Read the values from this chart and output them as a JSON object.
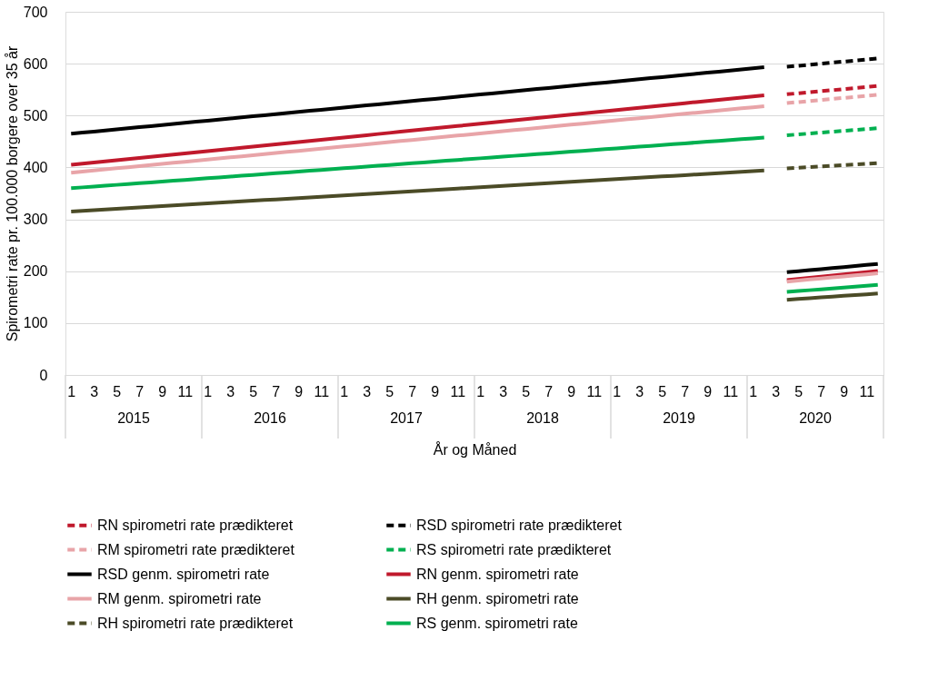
{
  "chart_data": {
    "type": "line",
    "xlabel": "År  og Måned",
    "ylabel": "Spirometri rate pr. 100.000 borgere over 35 år",
    "categories": [
      "1",
      null,
      "3",
      null,
      "5",
      null,
      "7",
      null,
      "9",
      null,
      "11",
      null,
      "1",
      null,
      "3",
      null,
      "5",
      null,
      "7",
      null,
      "9",
      null,
      "11",
      null,
      "1",
      null,
      "3",
      null,
      "5",
      null,
      "7",
      null,
      "9",
      null,
      "11",
      null,
      "1",
      null,
      "3",
      null,
      "5",
      null,
      "7",
      null,
      "9",
      null,
      "11",
      null,
      "1",
      null,
      "3",
      null,
      "5",
      null,
      "7",
      null,
      "9",
      null,
      "11",
      null,
      "1",
      null,
      "3",
      null,
      "5",
      null,
      "7",
      null,
      "9",
      null,
      "11",
      null
    ],
    "annotations": [
      "2015",
      "2016",
      "2017",
      "2018",
      "2019",
      "2020"
    ],
    "ylim": [
      0,
      700
    ],
    "yticks": [
      0,
      100,
      200,
      300,
      400,
      500,
      600,
      700
    ],
    "grid": "y",
    "legend": "bottom",
    "marker": "none",
    "series": [
      {
        "name": "RN  spirometri rate prædikteret",
        "color": "#c0192c",
        "line_style": "dashed",
        "values": [
          null,
          null,
          null,
          null,
          null,
          null,
          null,
          null,
          null,
          null,
          null,
          null,
          null,
          null,
          null,
          null,
          null,
          null,
          null,
          null,
          null,
          null,
          null,
          null,
          null,
          null,
          null,
          null,
          null,
          null,
          null,
          null,
          null,
          null,
          null,
          null,
          null,
          null,
          null,
          null,
          null,
          null,
          null,
          null,
          null,
          null,
          null,
          null,
          null,
          null,
          null,
          null,
          null,
          null,
          null,
          null,
          null,
          null,
          null,
          null,
          null,
          null,
          null,
          541,
          543,
          545,
          547,
          549,
          551,
          553,
          555,
          557
        ]
      },
      {
        "name": "RSD spirometri rate prædikteret",
        "color": "#000000",
        "line_style": "dashed",
        "values": [
          null,
          null,
          null,
          null,
          null,
          null,
          null,
          null,
          null,
          null,
          null,
          null,
          null,
          null,
          null,
          null,
          null,
          null,
          null,
          null,
          null,
          null,
          null,
          null,
          null,
          null,
          null,
          null,
          null,
          null,
          null,
          null,
          null,
          null,
          null,
          null,
          null,
          null,
          null,
          null,
          null,
          null,
          null,
          null,
          null,
          null,
          null,
          null,
          null,
          null,
          null,
          null,
          null,
          null,
          null,
          null,
          null,
          null,
          null,
          null,
          null,
          null,
          null,
          594,
          596,
          598,
          600,
          602,
          604,
          606,
          608,
          610
        ]
      },
      {
        "name": "RM spirometri rate prædikteret",
        "color": "#e8a4a8",
        "line_style": "dashed",
        "values": [
          null,
          null,
          null,
          null,
          null,
          null,
          null,
          null,
          null,
          null,
          null,
          null,
          null,
          null,
          null,
          null,
          null,
          null,
          null,
          null,
          null,
          null,
          null,
          null,
          null,
          null,
          null,
          null,
          null,
          null,
          null,
          null,
          null,
          null,
          null,
          null,
          null,
          null,
          null,
          null,
          null,
          null,
          null,
          null,
          null,
          null,
          null,
          null,
          null,
          null,
          null,
          null,
          null,
          null,
          null,
          null,
          null,
          null,
          null,
          null,
          null,
          null,
          null,
          524,
          526,
          528,
          530,
          532,
          534,
          536,
          538,
          540
        ]
      },
      {
        "name": "RS spirometri rate prædikteret",
        "color": "#00b050",
        "line_style": "dashed",
        "values": [
          null,
          null,
          null,
          null,
          null,
          null,
          null,
          null,
          null,
          null,
          null,
          null,
          null,
          null,
          null,
          null,
          null,
          null,
          null,
          null,
          null,
          null,
          null,
          null,
          null,
          null,
          null,
          null,
          null,
          null,
          null,
          null,
          null,
          null,
          null,
          null,
          null,
          null,
          null,
          null,
          null,
          null,
          null,
          null,
          null,
          null,
          null,
          null,
          null,
          null,
          null,
          null,
          null,
          null,
          null,
          null,
          null,
          null,
          null,
          null,
          null,
          null,
          null,
          462,
          463.7,
          465.4,
          467.1,
          468.8,
          470.5,
          472.2,
          473.9,
          475.6
        ]
      },
      {
        "name": "RSD genm. spirometri rate",
        "color": "#000000",
        "line_style": "solid",
        "values": [
          465.0,
          467.1,
          469.2,
          471.3,
          473.4,
          475.5,
          477.6,
          479.7,
          481.8,
          483.9,
          486.0,
          488.1,
          490.2,
          492.3,
          494.4,
          496.5,
          498.6,
          500.7,
          502.8,
          504.9,
          507.0,
          509.1,
          511.2,
          513.3,
          515.4,
          517.5,
          519.6,
          521.7,
          523.8,
          525.9,
          528.0,
          530.1,
          532.2,
          534.3,
          536.4,
          538.5,
          540.6,
          542.7,
          544.8,
          546.9,
          549.0,
          551.1,
          553.2,
          555.3,
          557.4,
          559.5,
          561.6,
          563.7,
          565.8,
          567.9,
          570.0,
          572.1,
          574.2,
          576.3,
          578.4,
          580.5,
          582.6,
          584.7,
          586.8,
          588.9,
          591.0,
          593.1,
          null,
          198,
          200,
          202,
          204,
          206,
          208,
          210,
          212,
          214
        ]
      },
      {
        "name": "RN genm. spirometri rate",
        "color": "#c0192c",
        "line_style": "solid",
        "values": [
          405,
          407.2,
          409.4,
          411.6,
          413.8,
          416,
          418.2,
          420.4,
          422.6,
          424.8,
          427,
          429.2,
          431.4,
          433.6,
          435.8,
          438,
          440.2,
          442.4,
          444.6,
          446.8,
          449,
          451.2,
          453.4,
          455.6,
          457.8,
          460,
          462.2,
          464.4,
          466.6,
          468.8,
          471,
          473.2,
          475.4,
          477.6,
          479.8,
          482,
          484.2,
          486.4,
          488.6,
          490.8,
          493,
          495.2,
          497.4,
          499.6,
          501.8,
          504,
          506.2,
          508.4,
          510.6,
          512.8,
          515,
          517.2,
          519.4,
          521.6,
          523.8,
          526,
          528.2,
          530.4,
          532.6,
          534.8,
          537,
          539.2,
          null,
          183,
          185.2,
          187.4,
          189.6,
          191.8,
          194,
          196.2,
          198.4,
          200.6
        ]
      },
      {
        "name": "RM genm. spirometri rate",
        "color": "#e8a4a8",
        "line_style": "solid",
        "values": [
          390,
          392.1,
          394.2,
          396.3,
          398.4,
          400.5,
          402.6,
          404.7,
          406.8,
          408.9,
          411,
          413.1,
          415.2,
          417.3,
          419.4,
          421.5,
          423.6,
          425.7,
          427.8,
          429.9,
          432,
          434.1,
          436.2,
          438.3,
          440.4,
          442.5,
          444.6,
          446.7,
          448.8,
          450.9,
          453,
          455.1,
          457.2,
          459.3,
          461.4,
          463.5,
          465.6,
          467.7,
          469.8,
          471.9,
          474,
          476.1,
          478.2,
          480.3,
          482.4,
          484.5,
          486.6,
          488.7,
          490.8,
          492.9,
          495,
          497.1,
          499.2,
          501.3,
          503.4,
          505.5,
          507.6,
          509.7,
          511.8,
          513.9,
          516,
          518.1,
          null,
          180,
          182,
          184,
          186,
          188,
          190,
          192,
          194,
          196
        ]
      },
      {
        "name": "RH genm. spirometri rate",
        "color": "#4b4b27",
        "line_style": "solid",
        "values": [
          315,
          316.3,
          317.6,
          318.9,
          320.2,
          321.5,
          322.8,
          324.1,
          325.4,
          326.7,
          328,
          329.3,
          330.6,
          331.9,
          333.2,
          334.5,
          335.8,
          337.1,
          338.4,
          339.7,
          341,
          342.3,
          343.6,
          344.9,
          346.2,
          347.5,
          348.8,
          350.1,
          351.4,
          352.7,
          354,
          355.3,
          356.6,
          357.9,
          359.2,
          360.5,
          361.8,
          363.1,
          364.4,
          365.7,
          367,
          368.3,
          369.6,
          370.9,
          372.2,
          373.5,
          374.8,
          376.1,
          377.4,
          378.7,
          380,
          381.3,
          382.6,
          383.9,
          385.2,
          386.5,
          387.8,
          389.1,
          390.4,
          391.7,
          393,
          394.3,
          null,
          145,
          146.5,
          148,
          149.5,
          151,
          152.5,
          154,
          155.5,
          157
        ]
      },
      {
        "name": "RH spirometri rate prædikteret",
        "color": "#4b4b27",
        "line_style": "dashed",
        "values": [
          null,
          null,
          null,
          null,
          null,
          null,
          null,
          null,
          null,
          null,
          null,
          null,
          null,
          null,
          null,
          null,
          null,
          null,
          null,
          null,
          null,
          null,
          null,
          null,
          null,
          null,
          null,
          null,
          null,
          null,
          null,
          null,
          null,
          null,
          null,
          null,
          null,
          null,
          null,
          null,
          null,
          null,
          null,
          null,
          null,
          null,
          null,
          null,
          null,
          null,
          null,
          null,
          null,
          null,
          null,
          null,
          null,
          null,
          null,
          null,
          null,
          null,
          null,
          398,
          399.3,
          400.6,
          401.9,
          403.2,
          404.5,
          405.8,
          407.1,
          408.4
        ]
      },
      {
        "name": "RS genm. spirometri rate",
        "color": "#00b050",
        "line_style": "solid",
        "values": [
          360,
          361.6,
          363.2,
          364.8,
          366.4,
          368,
          369.6,
          371.2,
          372.8,
          374.4,
          376,
          377.6,
          379.2,
          380.8,
          382.4,
          384,
          385.6,
          387.2,
          388.8,
          390.4,
          392,
          393.6,
          395.2,
          396.8,
          398.4,
          400,
          401.6,
          403.2,
          404.8,
          406.4,
          408,
          409.6,
          411.2,
          412.8,
          414.4,
          416,
          417.6,
          419.2,
          420.8,
          422.4,
          424,
          425.6,
          427.2,
          428.8,
          430.4,
          432,
          433.6,
          435.2,
          436.8,
          438.4,
          440,
          441.6,
          443.2,
          444.8,
          446.4,
          448,
          449.6,
          451.2,
          452.8,
          454.4,
          456,
          457.6,
          null,
          160,
          161.7,
          163.4,
          165.1,
          166.8,
          168.5,
          170.2,
          171.9,
          173.6
        ]
      }
    ]
  }
}
